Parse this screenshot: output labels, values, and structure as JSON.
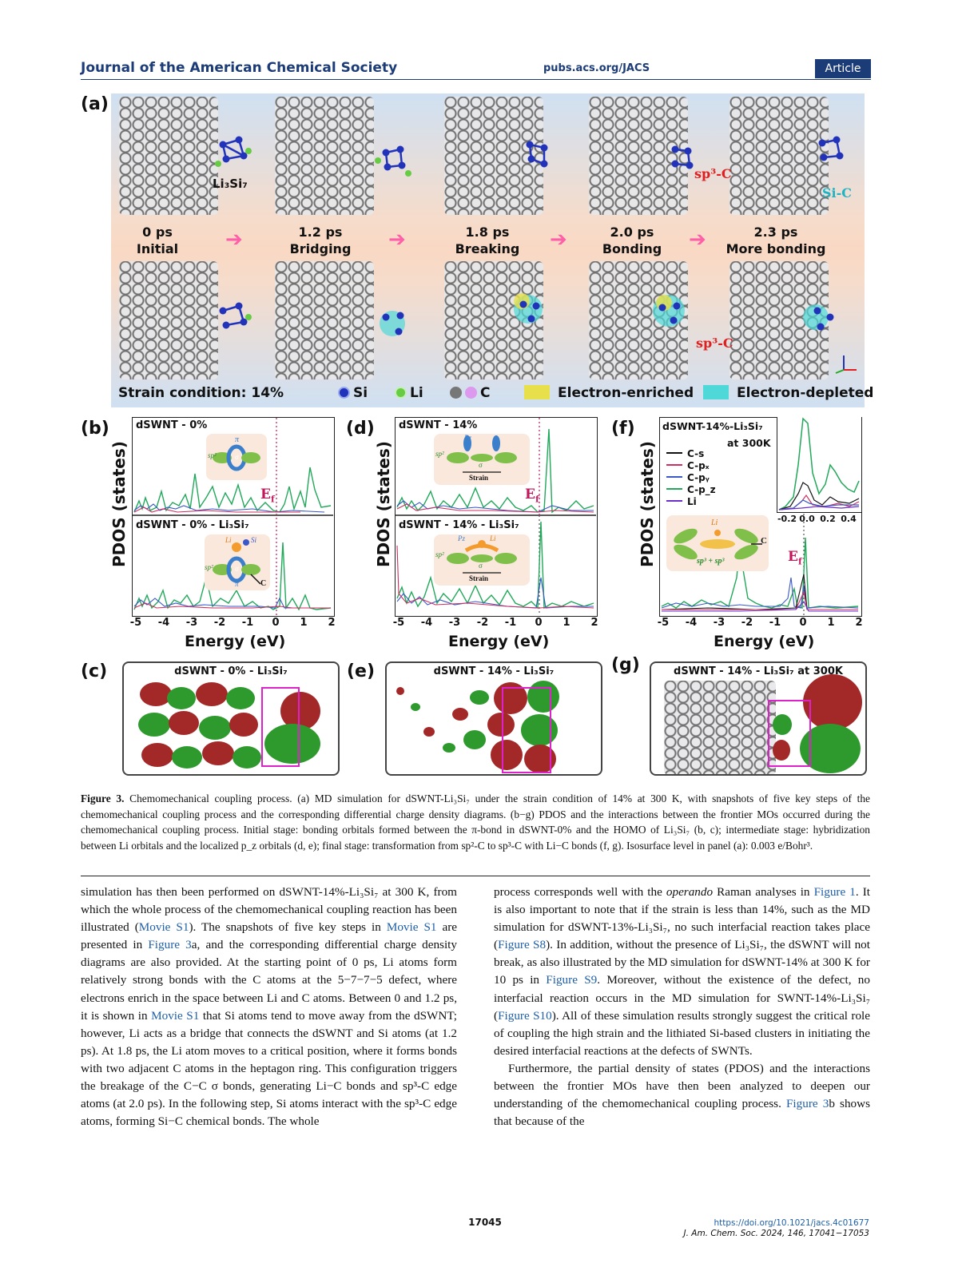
{
  "header": {
    "journal": "Journal of the American Chemical Society",
    "site": "pubs.acs.org/JACS",
    "article_type": "Article"
  },
  "figure": {
    "panel_labels": [
      "(a)",
      "(b)",
      "(c)",
      "(d)",
      "(e)",
      "(f)",
      "(g)"
    ],
    "panel_a": {
      "cluster_label": "Li₃Si₇",
      "steps": [
        {
          "time": "0 ps",
          "label": "Initial"
        },
        {
          "time": "1.2 ps",
          "label": "Bridging"
        },
        {
          "time": "1.8 ps",
          "label": "Breaking"
        },
        {
          "time": "2.0 ps",
          "label": "Bonding"
        },
        {
          "time": "2.3 ps",
          "label": "More bonding"
        }
      ],
      "annot_sp3_top": "sp³-C",
      "annot_sic": "Si-C",
      "annot_sp3_bottom": "sp³-C",
      "strain": "Strain condition: 14%",
      "legend": {
        "si": "Si",
        "li": "Li",
        "c": "C",
        "enriched": "Electron-enriched",
        "depleted": "Electron-depleted"
      },
      "colors": {
        "si": "#2233bb",
        "li": "#66cc44",
        "c": "#888888",
        "c2": "#dd99ee",
        "enriched": "#e8e04a",
        "depleted": "#4fd8d8"
      }
    },
    "pdos_b": {
      "top_title": "dSWNT - 0%",
      "bottom_title": "dSWNT - 0% - Li₃Si₇",
      "ylabel": "PDOS (states)",
      "xlabel": "Energy (eV)",
      "xticks": [
        "-5",
        "-4",
        "-3",
        "-2",
        "-1",
        "0",
        "1",
        "2"
      ],
      "ef": "E",
      "ef_sub": "f",
      "inset_top": {
        "sp2": "sp²",
        "pi": "π",
        "sigma": "σ"
      },
      "inset_bottom": {
        "li": "Li",
        "si": "Si",
        "sp2": "sp²",
        "pi": "π",
        "sigma": "σ",
        "c": "C"
      }
    },
    "pdos_d": {
      "top_title": "dSWNT - 14%",
      "bottom_title": "dSWNT - 14% - Li₃Si₇",
      "ylabel": "PDOS (states)",
      "xlabel": "Energy (eV)",
      "xticks": [
        "-5",
        "-4",
        "-3",
        "-2",
        "-1",
        "0",
        "1",
        "2"
      ],
      "ef": "E",
      "ef_sub": "f",
      "inset_top": {
        "pz": "Pz",
        "sp2": "sp²",
        "sigma": "σ",
        "strain": "Strain"
      },
      "inset_bottom": {
        "pz": "Pz",
        "li": "Li",
        "sp2": "sp²",
        "sigma": "σ",
        "strain": "Strain"
      }
    },
    "pdos_f": {
      "title": "dSWNT-14%-Li₃Si₇",
      "subtitle": "at 300K",
      "legend": [
        "C-s",
        "C-pₓ",
        "C-pᵧ",
        "C-p_z",
        "Li"
      ],
      "ylabel": "PDOS (states)",
      "xlabel": "Energy (eV)",
      "xticks": [
        "-5",
        "-4",
        "-3",
        "-2",
        "-1",
        "0",
        "1",
        "2"
      ],
      "inset_xticks": [
        "-0.2",
        "0.0",
        "0.2",
        "0.4"
      ],
      "ef": "E",
      "ef_sub": "f",
      "inset": {
        "li": "Li",
        "c": "C",
        "sp": "sp³ + sp³"
      }
    },
    "panel_c_title": "dSWNT - 0% - Li₃Si₇",
    "panel_e_title": "dSWNT - 14% - Li₃Si₇",
    "panel_g_title": "dSWNT - 14% - Li₃Si₇ at 300K"
  },
  "caption": {
    "label": "Figure 3.",
    "text": "Chemomechanical coupling process. (a) MD simulation for dSWNT-Li₃Si₇ under the strain condition of 14% at 300 K, with snapshots of five key steps of the chemomechanical coupling process and the corresponding differential charge density diagrams. (b−g) PDOS and the interactions between the frontier MOs occurred during the chemomechanical coupling process. Initial stage: bonding orbitals formed between the π-bond in dSWNT-0% and the HOMO of Li₃Si₇ (b, c); intermediate stage: hybridization between Li orbitals and the localized p_z orbitals (d, e); final stage: transformation from sp²-C to sp³-C with Li−C bonds (f, g). Isosurface level in panel (a): 0.003 e/Bohr³."
  },
  "left_col": {
    "p1_a": "simulation has then been performed on dSWNT-14%-Li₃Si₇ at 300 K, from which the whole process of the chemomechanical coupling reaction has been illustrated (",
    "p1_link1": "Movie S1",
    "p1_b": "). The snapshots of five key steps in ",
    "p1_link2": "Movie S1",
    "p1_c": " are presented in ",
    "p1_link3": "Figure 3",
    "p1_d": "a, and the corresponding differential charge density diagrams are also provided. At the starting point of 0 ps, Li atoms form relatively strong bonds with the C atoms at the 5−7−7−5 defect, where electrons enrich in the space between Li and C atoms. Between 0 and 1.2 ps, it is shown in ",
    "p1_link4": "Movie S1",
    "p1_e": " that Si atoms tend to move away from the dSWNT; however, Li acts as a bridge that connects the dSWNT and Si atoms (at 1.2 ps). At 1.8 ps, the Li atom moves to a critical position, where it forms bonds with two adjacent C atoms in the heptagon ring. This configuration triggers the breakage of the C−C σ bonds, generating Li−C bonds and sp³-C edge atoms (at 2.0 ps). In the following step, Si atoms interact with the sp³-C edge atoms, forming Si−C chemical bonds. The whole"
  },
  "right_col": {
    "p1_a": "process corresponds well with the ",
    "p1_em": "operando",
    "p1_b": " Raman analyses in ",
    "p1_link1": "Figure 1",
    "p1_c": ". It is also important to note that if the strain is less than 14%, such as the MD simulation for dSWNT-13%-Li₃Si₇, no such interfacial reaction takes place (",
    "p1_link2": "Figure S8",
    "p1_d": "). In addition, without the presence of Li₃Si₇, the dSWNT will not break, as also illustrated by the MD simulation for dSWNT-14% at 300 K for 10 ps in ",
    "p1_link3": "Figure S9",
    "p1_e": ". Moreover, without the existence of the defect, no interfacial reaction occurs in the MD simulation for SWNT-14%-Li₃Si₇ (",
    "p1_link4": "Figure S10",
    "p1_f": "). All of these simulation results strongly suggest the critical role of coupling the high strain and the lithiated Si-based clusters in initiating the desired interfacial reactions at the defects of SWNTs.",
    "p2_a": "Furthermore, the partial density of states (PDOS) and the interactions between the frontier MOs have then been analyzed to deepen our understanding of the chemomechanical coupling process. ",
    "p2_link": "Figure 3",
    "p2_b": "b shows that because of the"
  },
  "footer": {
    "page": "17045",
    "doi": "https://doi.org/10.1021/jacs.4c01677",
    "citation": "J. Am. Chem. Soc. 2024, 146, 17041−17053"
  }
}
